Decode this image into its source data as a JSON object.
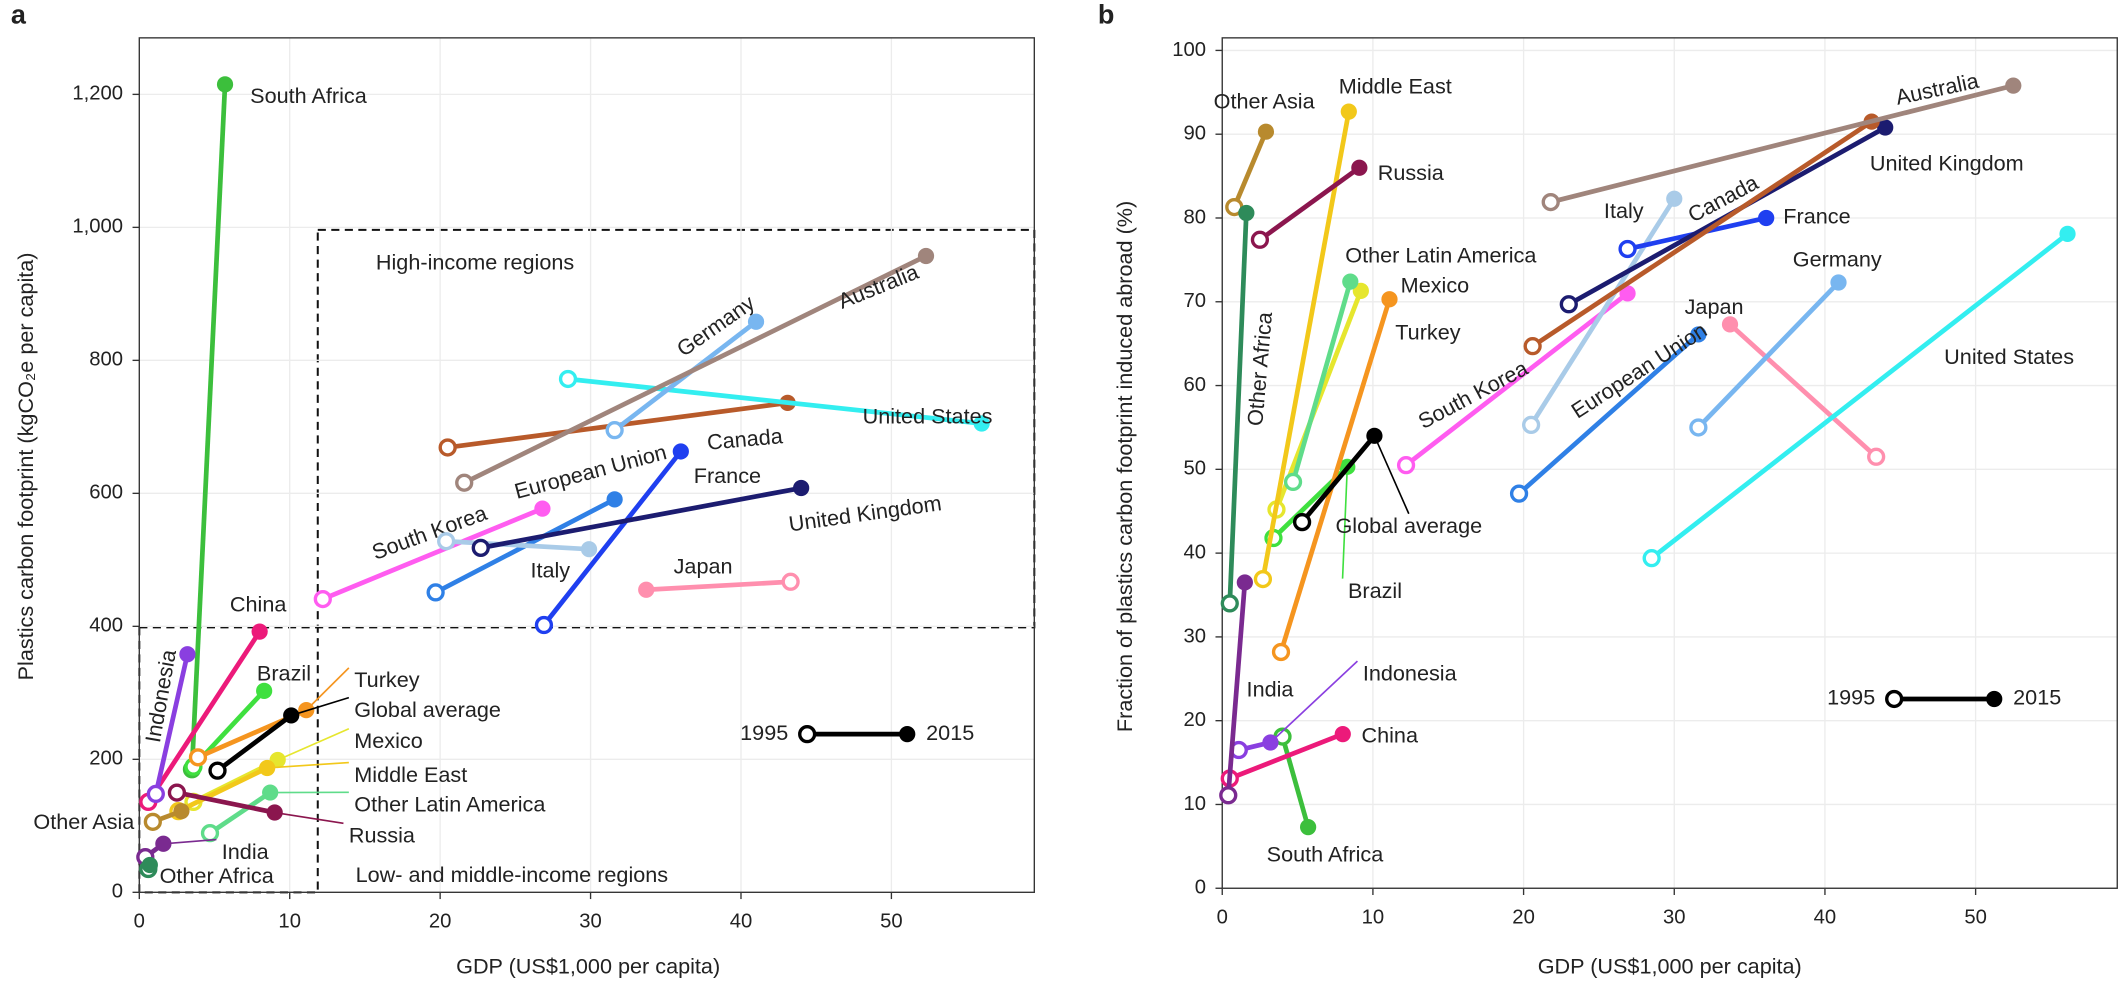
{
  "chart_data": [
    {
      "type": "dumbbell",
      "panel": "a",
      "xlabel": "GDP (US$1,000 per capita)",
      "ylabel": "Plastics carbon footprint (kgCO₂e per capita)",
      "xlim": [
        0,
        59.5
      ],
      "ylim": [
        0,
        1285
      ],
      "xticks": [
        0,
        10,
        20,
        30,
        40,
        50
      ],
      "yticks": [
        0,
        200,
        400,
        600,
        800,
        {
          "value": 1000,
          "label": "1,000"
        },
        {
          "value": 1200,
          "label": "1,200"
        }
      ],
      "grid": true,
      "annotations": [
        "High-income regions",
        "Low- and middle-income regions"
      ],
      "legend": {
        "start": "1995",
        "end": "2015"
      },
      "series": [
        {
          "name": "South Africa",
          "color": "#3cbf3c",
          "x": [
            3.5,
            5.7
          ],
          "values": [
            185,
            1215
          ]
        },
        {
          "name": "China",
          "color": "#ec1a7a",
          "x": [
            0.6,
            8.0
          ],
          "values": [
            136,
            392
          ]
        },
        {
          "name": "Indonesia",
          "color": "#8a3fe0",
          "x": [
            1.1,
            3.2
          ],
          "values": [
            148,
            358
          ]
        },
        {
          "name": "Brazil",
          "color": "#3fe03f",
          "x": [
            3.6,
            8.3
          ],
          "values": [
            189,
            303
          ]
        },
        {
          "name": "Turkey",
          "color": "#f5951f",
          "x": [
            3.9,
            11.1
          ],
          "values": [
            203,
            274
          ]
        },
        {
          "name": "Global average",
          "color": "#000000",
          "x": [
            5.2,
            10.1
          ],
          "values": [
            183,
            266
          ]
        },
        {
          "name": "Mexico",
          "color": "#e6e62e",
          "x": [
            3.6,
            9.2
          ],
          "values": [
            136,
            199
          ]
        },
        {
          "name": "Middle East",
          "color": "#f2c81a",
          "x": [
            2.6,
            8.5
          ],
          "values": [
            122,
            187
          ]
        },
        {
          "name": "Other Latin America",
          "color": "#5fdc8a",
          "x": [
            4.7,
            8.7
          ],
          "values": [
            89,
            150
          ]
        },
        {
          "name": "Russia",
          "color": "#8b164e",
          "x": [
            2.5,
            9.0
          ],
          "values": [
            150,
            120
          ]
        },
        {
          "name": "Other Asia",
          "color": "#b88a2e",
          "x": [
            0.9,
            2.8
          ],
          "values": [
            106,
            122
          ]
        },
        {
          "name": "India",
          "color": "#7a2a90",
          "x": [
            0.4,
            1.6
          ],
          "values": [
            53,
            73
          ]
        },
        {
          "name": "Other Africa",
          "color": "#2e8b5a",
          "x": [
            0.6,
            0.7
          ],
          "values": [
            35,
            41
          ]
        },
        {
          "name": "South Korea",
          "color": "#ff5cf0",
          "x": [
            12.2,
            26.8
          ],
          "values": [
            441,
            577
          ]
        },
        {
          "name": "European Union",
          "color": "#2f80e6",
          "x": [
            19.7,
            31.6
          ],
          "values": [
            451,
            591
          ]
        },
        {
          "name": "Italy",
          "color": "#a9cbe8",
          "x": [
            20.4,
            29.9
          ],
          "values": [
            528,
            516
          ]
        },
        {
          "name": "France",
          "color": "#1f3ff0",
          "x": [
            26.9,
            36.0
          ],
          "values": [
            402,
            663
          ]
        },
        {
          "name": "United Kingdom",
          "color": "#1c1c70",
          "x": [
            22.7,
            44.0
          ],
          "values": [
            518,
            608
          ]
        },
        {
          "name": "Japan",
          "color": "#ff8fae",
          "x": [
            43.3,
            33.7
          ],
          "values": [
            467,
            455
          ]
        },
        {
          "name": "Canada",
          "color": "#b85a2a",
          "x": [
            20.5,
            43.1
          ],
          "values": [
            669,
            736
          ]
        },
        {
          "name": "United States",
          "color": "#33eef0",
          "x": [
            28.5,
            56.0
          ],
          "values": [
            772,
            705
          ]
        },
        {
          "name": "Germany",
          "color": "#78b6f0",
          "x": [
            31.6,
            41.0
          ],
          "values": [
            695,
            858
          ]
        },
        {
          "name": "Australia",
          "color": "#a0857c",
          "x": [
            21.6,
            52.3
          ],
          "values": [
            616,
            957
          ]
        }
      ]
    },
    {
      "type": "dumbbell",
      "panel": "b",
      "xlabel": "GDP (US$1,000 per capita)",
      "ylabel": "Fraction of plastics carbon footprint induced abroad (%)",
      "xlim": [
        0,
        59.4
      ],
      "ylim": [
        0,
        101.5
      ],
      "xticks": [
        0,
        10,
        20,
        30,
        40,
        50
      ],
      "yticks": [
        0,
        10,
        20,
        30,
        40,
        50,
        60,
        70,
        80,
        90,
        100
      ],
      "grid": true,
      "annotations": [],
      "legend": {
        "start": "1995",
        "end": "2015"
      },
      "series": [
        {
          "name": "South Africa",
          "color": "#3cbf3c",
          "x": [
            4.0,
            5.7
          ],
          "values": [
            18.1,
            7.3
          ]
        },
        {
          "name": "China",
          "color": "#ec1a7a",
          "x": [
            0.5,
            8.0
          ],
          "values": [
            13.1,
            18.4
          ]
        },
        {
          "name": "Indonesia",
          "color": "#8a3fe0",
          "x": [
            1.1,
            3.2
          ],
          "values": [
            16.5,
            17.4
          ]
        },
        {
          "name": "Brazil",
          "color": "#3fe03f",
          "x": [
            3.4,
            8.3
          ],
          "values": [
            41.8,
            50.3
          ]
        },
        {
          "name": "Turkey",
          "color": "#f5951f",
          "x": [
            3.9,
            11.1
          ],
          "values": [
            28.2,
            70.3
          ]
        },
        {
          "name": "Global average",
          "color": "#000000",
          "x": [
            5.3,
            10.1
          ],
          "values": [
            43.7,
            54.0
          ]
        },
        {
          "name": "Mexico",
          "color": "#e6e62e",
          "x": [
            3.6,
            9.2
          ],
          "values": [
            45.2,
            71.3
          ]
        },
        {
          "name": "Middle East",
          "color": "#f2c81a",
          "x": [
            2.7,
            8.4
          ],
          "values": [
            36.9,
            92.7
          ]
        },
        {
          "name": "Other Latin America",
          "color": "#5fdc8a",
          "x": [
            4.7,
            8.5
          ],
          "values": [
            48.5,
            72.4
          ]
        },
        {
          "name": "Russia",
          "color": "#8b164e",
          "x": [
            2.5,
            9.1
          ],
          "values": [
            77.4,
            86.0
          ]
        },
        {
          "name": "Other Asia",
          "color": "#b88a2e",
          "x": [
            0.8,
            2.9
          ],
          "values": [
            81.3,
            90.3
          ]
        },
        {
          "name": "India",
          "color": "#7a2a90",
          "x": [
            0.4,
            1.5
          ],
          "values": [
            11.1,
            36.5
          ]
        },
        {
          "name": "Other Africa",
          "color": "#2e8b5a",
          "x": [
            0.5,
            1.6
          ],
          "values": [
            34.0,
            80.6
          ]
        },
        {
          "name": "South Korea",
          "color": "#ff5cf0",
          "x": [
            12.2,
            26.9
          ],
          "values": [
            50.5,
            71.0
          ]
        },
        {
          "name": "European Union",
          "color": "#2f80e6",
          "x": [
            19.7,
            31.6
          ],
          "values": [
            47.1,
            66.1
          ]
        },
        {
          "name": "Italy",
          "color": "#a9cbe8",
          "x": [
            20.5,
            30.0
          ],
          "values": [
            55.3,
            82.3
          ]
        },
        {
          "name": "France",
          "color": "#1f3ff0",
          "x": [
            26.9,
            36.1
          ],
          "values": [
            76.3,
            80.0
          ]
        },
        {
          "name": "United Kingdom",
          "color": "#1c1c70",
          "x": [
            23.0,
            44.0
          ],
          "values": [
            69.7,
            90.8
          ]
        },
        {
          "name": "Japan",
          "color": "#ff8fae",
          "x": [
            43.4,
            33.7
          ],
          "values": [
            51.5,
            67.3
          ]
        },
        {
          "name": "Canada",
          "color": "#b85a2a",
          "x": [
            20.6,
            43.1
          ],
          "values": [
            64.7,
            91.5
          ]
        },
        {
          "name": "United States",
          "color": "#33eef0",
          "x": [
            28.5,
            56.1
          ],
          "values": [
            39.4,
            78.1
          ]
        },
        {
          "name": "Germany",
          "color": "#78b6f0",
          "x": [
            31.6,
            40.9
          ],
          "values": [
            55.0,
            72.3
          ]
        },
        {
          "name": "Australia",
          "color": "#a0857c",
          "x": [
            21.8,
            52.5
          ],
          "values": [
            81.9,
            95.8
          ]
        }
      ]
    }
  ]
}
